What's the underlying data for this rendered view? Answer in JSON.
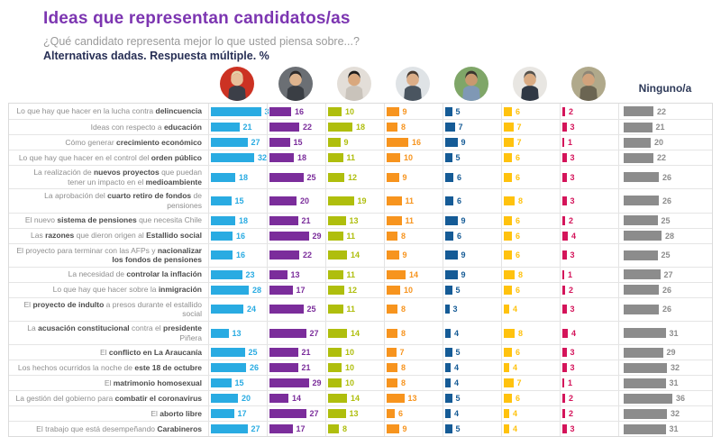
{
  "header": {
    "title": "Ideas que representan candidatos/as",
    "subtitle": "¿Qué candidato representa mejor lo que usted piensa sobre...?",
    "subtitle2": "Alternativas dadas. Respuesta múltiple. %",
    "none_label": "Ninguno/a"
  },
  "colors": {
    "title_purple": "#7C35B1",
    "subtitle_gray": "#9A9A9A",
    "subtitle_navy": "#272F55",
    "row_label_gray": "#8E8E8E",
    "row_label_bold": "#4B4B4B",
    "grid_line": "#E3E3E3"
  },
  "avatars": [
    {
      "name": "candidate-1-photo",
      "bg": "#CC3223",
      "suit": "#3C3F48",
      "skin": "#E8BF9A",
      "hair": "#E3D3A9"
    },
    {
      "name": "candidate-2-photo",
      "bg": "#6B6F74",
      "suit": "#3A3E44",
      "skin": "#DEB48E",
      "hair": "#2E2A28"
    },
    {
      "name": "candidate-3-photo",
      "bg": "#E3DED8",
      "suit": "#C9C3BB",
      "skin": "#D9A87E",
      "hair": "#1F1C1A"
    },
    {
      "name": "candidate-4-photo",
      "bg": "#DFE3E6",
      "suit": "#4A5560",
      "skin": "#DCAE88",
      "hair": "#4A3B30"
    },
    {
      "name": "candidate-5-photo",
      "bg": "#7FA668",
      "suit": "#7F98B5",
      "skin": "#C8996F",
      "hair": "#3A342E"
    },
    {
      "name": "candidate-6-photo",
      "bg": "#E8E6E2",
      "suit": "#2F3844",
      "skin": "#D9AB83",
      "hair": "#55514B"
    },
    {
      "name": "candidate-7-photo",
      "bg": "#B0A98B",
      "suit": "#6B6552",
      "skin": "#D2A37C",
      "hair": "#8E8676"
    }
  ],
  "chart_data": {
    "type": "bar",
    "orientation": "horizontal",
    "unit": "%",
    "value_range": [
      0,
      37
    ],
    "categories": [
      "Lo que hay que hacer en la lucha contra **delincuencia**",
      "Ideas con respecto a **educación**",
      "Cómo generar **crecimiento económico**",
      "Lo que hay que hacer en el control del **orden público**",
      "La realización de **nuevos proyectos** que puedan tener un impacto en el **medioambiente**",
      "La aprobación del **cuarto retiro de fondos** de pensiones",
      "El nuevo **sistema de pensiones** que necesita Chile",
      "Las **razones** que dieron origen al **Estallido social**",
      "El proyecto para terminar con las AFPs y **nacionalizar los fondos de pensiones**",
      "La necesidad de **controlar la inflación**",
      "Lo que hay que hacer sobre la **inmigración**",
      "El **proyecto de indulto** a presos durante el estallido social",
      "La **acusación constitucional** contra el **presidente** Piñera",
      "El **conflicto en La Araucanía**",
      "Los hechos ocurridos la noche de **este 18 de octubre**",
      "El **matrimonio homosexual**",
      "La gestión del gobierno para **combatir el coronavirus**",
      "El **aborto libre**",
      "El trabajo que está desempeñando **Carabineros**"
    ],
    "series": [
      {
        "name": "candidate-1",
        "color": "#29ABE2",
        "values": [
          37,
          21,
          27,
          32,
          18,
          15,
          18,
          16,
          16,
          23,
          28,
          24,
          13,
          25,
          26,
          15,
          20,
          17,
          27
        ]
      },
      {
        "name": "candidate-2",
        "color": "#7B2D9B",
        "values": [
          16,
          22,
          15,
          18,
          25,
          20,
          21,
          29,
          22,
          13,
          17,
          25,
          27,
          21,
          21,
          29,
          14,
          27,
          17
        ]
      },
      {
        "name": "candidate-3",
        "color": "#AFBE0D",
        "values": [
          10,
          18,
          9,
          11,
          12,
          19,
          13,
          11,
          14,
          11,
          12,
          11,
          14,
          10,
          10,
          10,
          14,
          13,
          8
        ]
      },
      {
        "name": "candidate-4",
        "color": "#F7941E",
        "values": [
          9,
          8,
          16,
          10,
          9,
          11,
          11,
          8,
          9,
          14,
          10,
          8,
          8,
          7,
          8,
          8,
          13,
          6,
          9
        ]
      },
      {
        "name": "candidate-5",
        "color": "#155B96",
        "values": [
          5,
          7,
          9,
          5,
          6,
          6,
          9,
          6,
          9,
          9,
          5,
          3,
          4,
          5,
          4,
          4,
          5,
          4,
          5
        ]
      },
      {
        "name": "candidate-6",
        "color": "#FFC20E",
        "values": [
          6,
          7,
          7,
          6,
          6,
          8,
          6,
          6,
          6,
          8,
          6,
          4,
          8,
          6,
          4,
          7,
          6,
          4,
          4
        ]
      },
      {
        "name": "candidate-7",
        "color": "#D4145A",
        "values": [
          2,
          3,
          1,
          3,
          3,
          3,
          2,
          4,
          3,
          1,
          2,
          3,
          4,
          3,
          3,
          1,
          2,
          2,
          3
        ]
      },
      {
        "name": "ninguno",
        "color": "#8C8C8C",
        "values": [
          22,
          21,
          20,
          22,
          26,
          26,
          25,
          28,
          25,
          27,
          26,
          26,
          31,
          29,
          32,
          31,
          36,
          32,
          31
        ]
      }
    ]
  }
}
